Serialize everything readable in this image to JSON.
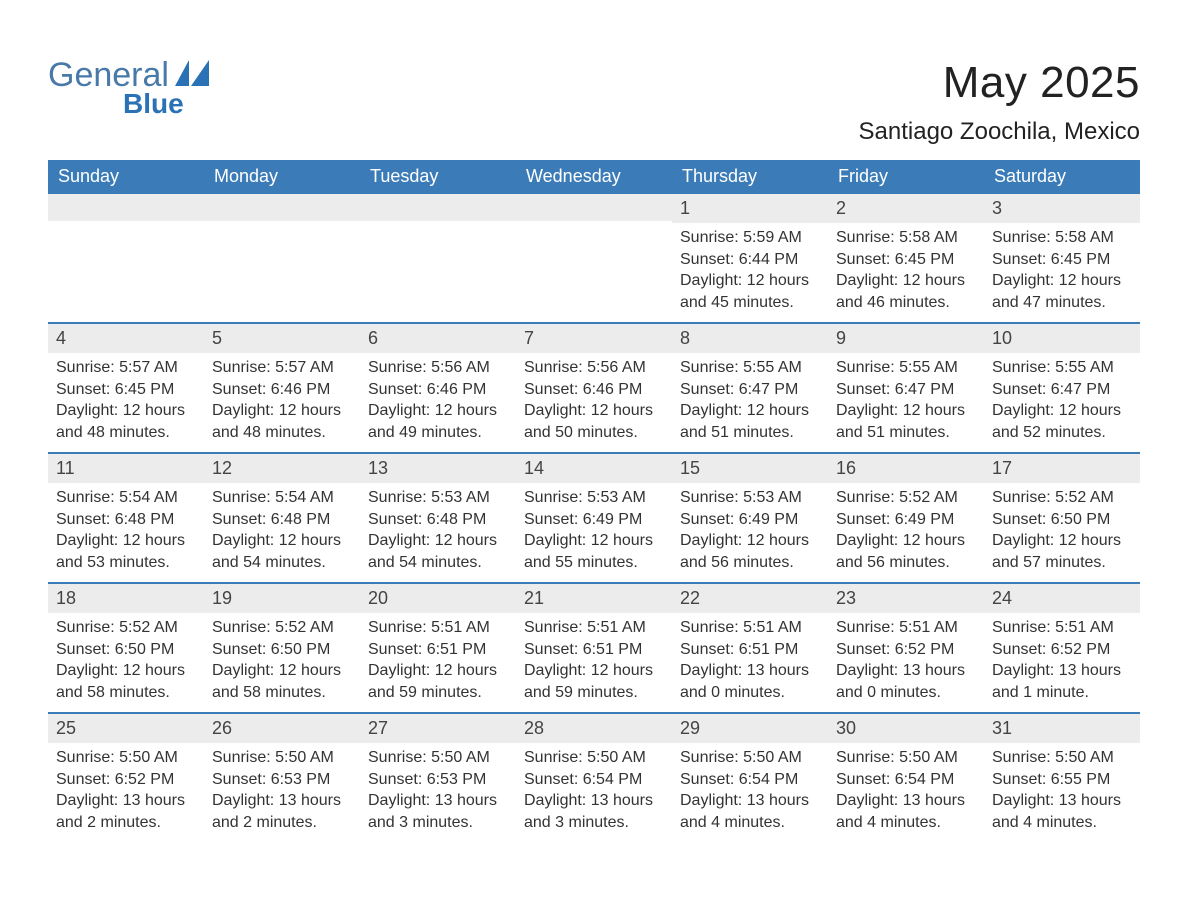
{
  "logo": {
    "text_main": "General",
    "text_sub": "Blue",
    "color_main": "#4879a8",
    "color_sub": "#2a72b5",
    "triangle_color": "#2a72b5"
  },
  "title": "May 2025",
  "location": "Santiago Zoochila, Mexico",
  "colors": {
    "header_bg": "#3b7cb8",
    "header_text": "#ffffff",
    "daynum_bg": "#ececec",
    "row_border": "#3b7cb8",
    "body_text": "#333333",
    "background": "#ffffff"
  },
  "fonts": {
    "title_size_pt": 33,
    "location_size_pt": 18,
    "weekday_size_pt": 14,
    "cell_size_pt": 12
  },
  "weekdays": [
    "Sunday",
    "Monday",
    "Tuesday",
    "Wednesday",
    "Thursday",
    "Friday",
    "Saturday"
  ],
  "weeks": [
    [
      null,
      null,
      null,
      null,
      {
        "n": "1",
        "sunrise": "Sunrise: 5:59 AM",
        "sunset": "Sunset: 6:44 PM",
        "daylight": "Daylight: 12 hours and 45 minutes."
      },
      {
        "n": "2",
        "sunrise": "Sunrise: 5:58 AM",
        "sunset": "Sunset: 6:45 PM",
        "daylight": "Daylight: 12 hours and 46 minutes."
      },
      {
        "n": "3",
        "sunrise": "Sunrise: 5:58 AM",
        "sunset": "Sunset: 6:45 PM",
        "daylight": "Daylight: 12 hours and 47 minutes."
      }
    ],
    [
      {
        "n": "4",
        "sunrise": "Sunrise: 5:57 AM",
        "sunset": "Sunset: 6:45 PM",
        "daylight": "Daylight: 12 hours and 48 minutes."
      },
      {
        "n": "5",
        "sunrise": "Sunrise: 5:57 AM",
        "sunset": "Sunset: 6:46 PM",
        "daylight": "Daylight: 12 hours and 48 minutes."
      },
      {
        "n": "6",
        "sunrise": "Sunrise: 5:56 AM",
        "sunset": "Sunset: 6:46 PM",
        "daylight": "Daylight: 12 hours and 49 minutes."
      },
      {
        "n": "7",
        "sunrise": "Sunrise: 5:56 AM",
        "sunset": "Sunset: 6:46 PM",
        "daylight": "Daylight: 12 hours and 50 minutes."
      },
      {
        "n": "8",
        "sunrise": "Sunrise: 5:55 AM",
        "sunset": "Sunset: 6:47 PM",
        "daylight": "Daylight: 12 hours and 51 minutes."
      },
      {
        "n": "9",
        "sunrise": "Sunrise: 5:55 AM",
        "sunset": "Sunset: 6:47 PM",
        "daylight": "Daylight: 12 hours and 51 minutes."
      },
      {
        "n": "10",
        "sunrise": "Sunrise: 5:55 AM",
        "sunset": "Sunset: 6:47 PM",
        "daylight": "Daylight: 12 hours and 52 minutes."
      }
    ],
    [
      {
        "n": "11",
        "sunrise": "Sunrise: 5:54 AM",
        "sunset": "Sunset: 6:48 PM",
        "daylight": "Daylight: 12 hours and 53 minutes."
      },
      {
        "n": "12",
        "sunrise": "Sunrise: 5:54 AM",
        "sunset": "Sunset: 6:48 PM",
        "daylight": "Daylight: 12 hours and 54 minutes."
      },
      {
        "n": "13",
        "sunrise": "Sunrise: 5:53 AM",
        "sunset": "Sunset: 6:48 PM",
        "daylight": "Daylight: 12 hours and 54 minutes."
      },
      {
        "n": "14",
        "sunrise": "Sunrise: 5:53 AM",
        "sunset": "Sunset: 6:49 PM",
        "daylight": "Daylight: 12 hours and 55 minutes."
      },
      {
        "n": "15",
        "sunrise": "Sunrise: 5:53 AM",
        "sunset": "Sunset: 6:49 PM",
        "daylight": "Daylight: 12 hours and 56 minutes."
      },
      {
        "n": "16",
        "sunrise": "Sunrise: 5:52 AM",
        "sunset": "Sunset: 6:49 PM",
        "daylight": "Daylight: 12 hours and 56 minutes."
      },
      {
        "n": "17",
        "sunrise": "Sunrise: 5:52 AM",
        "sunset": "Sunset: 6:50 PM",
        "daylight": "Daylight: 12 hours and 57 minutes."
      }
    ],
    [
      {
        "n": "18",
        "sunrise": "Sunrise: 5:52 AM",
        "sunset": "Sunset: 6:50 PM",
        "daylight": "Daylight: 12 hours and 58 minutes."
      },
      {
        "n": "19",
        "sunrise": "Sunrise: 5:52 AM",
        "sunset": "Sunset: 6:50 PM",
        "daylight": "Daylight: 12 hours and 58 minutes."
      },
      {
        "n": "20",
        "sunrise": "Sunrise: 5:51 AM",
        "sunset": "Sunset: 6:51 PM",
        "daylight": "Daylight: 12 hours and 59 minutes."
      },
      {
        "n": "21",
        "sunrise": "Sunrise: 5:51 AM",
        "sunset": "Sunset: 6:51 PM",
        "daylight": "Daylight: 12 hours and 59 minutes."
      },
      {
        "n": "22",
        "sunrise": "Sunrise: 5:51 AM",
        "sunset": "Sunset: 6:51 PM",
        "daylight": "Daylight: 13 hours and 0 minutes."
      },
      {
        "n": "23",
        "sunrise": "Sunrise: 5:51 AM",
        "sunset": "Sunset: 6:52 PM",
        "daylight": "Daylight: 13 hours and 0 minutes."
      },
      {
        "n": "24",
        "sunrise": "Sunrise: 5:51 AM",
        "sunset": "Sunset: 6:52 PM",
        "daylight": "Daylight: 13 hours and 1 minute."
      }
    ],
    [
      {
        "n": "25",
        "sunrise": "Sunrise: 5:50 AM",
        "sunset": "Sunset: 6:52 PM",
        "daylight": "Daylight: 13 hours and 2 minutes."
      },
      {
        "n": "26",
        "sunrise": "Sunrise: 5:50 AM",
        "sunset": "Sunset: 6:53 PM",
        "daylight": "Daylight: 13 hours and 2 minutes."
      },
      {
        "n": "27",
        "sunrise": "Sunrise: 5:50 AM",
        "sunset": "Sunset: 6:53 PM",
        "daylight": "Daylight: 13 hours and 3 minutes."
      },
      {
        "n": "28",
        "sunrise": "Sunrise: 5:50 AM",
        "sunset": "Sunset: 6:54 PM",
        "daylight": "Daylight: 13 hours and 3 minutes."
      },
      {
        "n": "29",
        "sunrise": "Sunrise: 5:50 AM",
        "sunset": "Sunset: 6:54 PM",
        "daylight": "Daylight: 13 hours and 4 minutes."
      },
      {
        "n": "30",
        "sunrise": "Sunrise: 5:50 AM",
        "sunset": "Sunset: 6:54 PM",
        "daylight": "Daylight: 13 hours and 4 minutes."
      },
      {
        "n": "31",
        "sunrise": "Sunrise: 5:50 AM",
        "sunset": "Sunset: 6:55 PM",
        "daylight": "Daylight: 13 hours and 4 minutes."
      }
    ]
  ]
}
